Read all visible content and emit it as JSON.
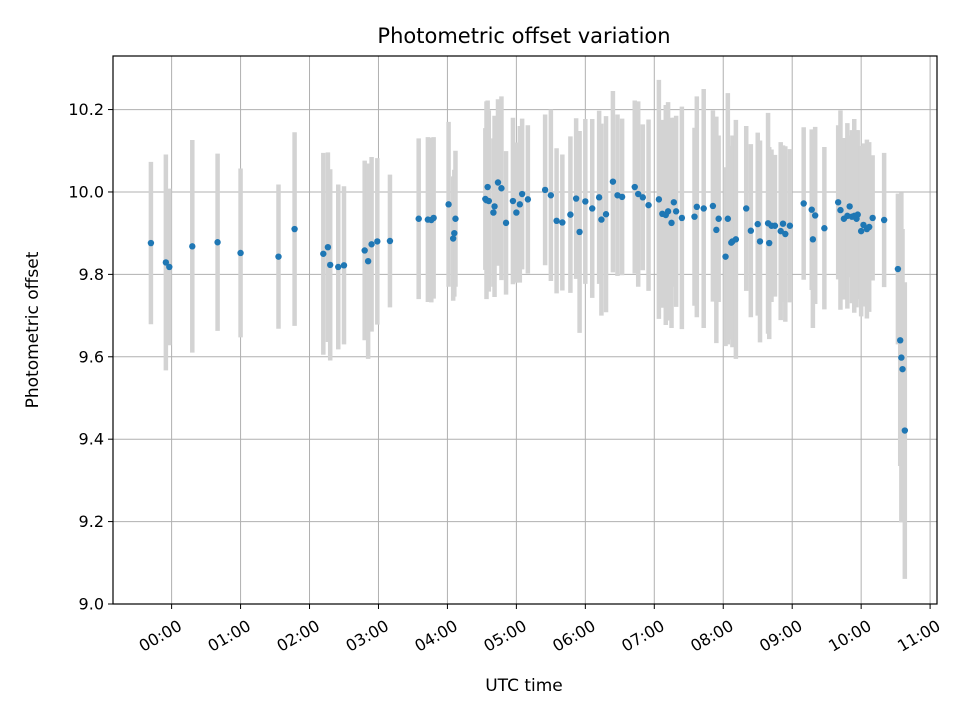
{
  "chart_data": {
    "type": "scatter",
    "title": "Photometric offset variation",
    "xlabel": "UTC time",
    "ylabel": "Photometric offset",
    "ylim": [
      9.0,
      10.33
    ],
    "xlim_hours": [
      -0.85,
      11.1
    ],
    "grid": true,
    "x_ticks": [
      "00:00",
      "01:00",
      "02:00",
      "03:00",
      "04:00",
      "05:00",
      "06:00",
      "07:00",
      "08:00",
      "09:00",
      "10:00",
      "11:00"
    ],
    "y_ticks": [
      "9.0",
      "9.2",
      "9.4",
      "9.6",
      "9.8",
      "10.0",
      "10.2"
    ],
    "colors": {
      "points": "#1f77b4",
      "errorbars": "#d3d3d3",
      "grid": "#b0b0b0"
    },
    "series": [
      {
        "x": [
          "-00:18",
          "-00:05",
          "-00:02",
          "00:18",
          "00:40",
          "01:00",
          "01:33",
          "01:47",
          "02:12",
          "02:16",
          "02:18",
          "02:25",
          "02:30",
          "02:48",
          "02:51",
          "02:54",
          "02:59",
          "03:10",
          "03:35",
          "03:43",
          "03:46",
          "03:48",
          "04:01",
          "04:05",
          "04:06",
          "04:07",
          "04:33",
          "04:34",
          "04:35",
          "04:36",
          "04:40",
          "04:41",
          "04:44",
          "04:47",
          "04:51",
          "04:57",
          "05:00",
          "05:03",
          "05:05",
          "05:10",
          "05:25",
          "05:30",
          "05:35",
          "05:40",
          "05:47",
          "05:52",
          "05:55",
          "06:00",
          "06:06",
          "06:12",
          "06:14",
          "06:18",
          "06:24",
          "06:28",
          "06:32",
          "06:43",
          "06:46",
          "06:50",
          "06:55",
          "07:04",
          "07:07",
          "07:10",
          "07:12",
          "07:15",
          "07:17",
          "07:19",
          "07:24",
          "07:35",
          "07:37",
          "07:43",
          "07:51",
          "07:54",
          "07:56",
          "08:02",
          "08:04",
          "08:07",
          "08:08",
          "08:11",
          "08:20",
          "08:24",
          "08:30",
          "08:32",
          "08:39",
          "08:40",
          "08:42",
          "08:45",
          "08:50",
          "08:52",
          "08:54",
          "08:58",
          "09:10",
          "09:17",
          "09:18",
          "09:20",
          "09:28",
          "09:40",
          "09:42",
          "09:45",
          "09:48",
          "09:50",
          "09:52",
          "09:54",
          "09:56",
          "09:57",
          "10:00",
          "10:02",
          "10:05",
          "10:07",
          "10:10",
          "10:20",
          "10:32",
          "10:34",
          "10:35",
          "10:36",
          "10:38"
        ],
        "y": [
          9.876,
          9.829,
          9.818,
          9.868,
          9.878,
          9.852,
          9.843,
          9.91,
          9.85,
          9.866,
          9.823,
          9.818,
          9.822,
          9.858,
          9.832,
          9.873,
          9.88,
          9.881,
          9.935,
          9.933,
          9.932,
          9.937,
          9.97,
          9.887,
          9.9,
          9.935,
          9.983,
          9.98,
          10.012,
          9.978,
          9.95,
          9.965,
          10.023,
          10.009,
          9.925,
          9.978,
          9.95,
          9.97,
          9.995,
          9.982,
          10.005,
          9.992,
          9.93,
          9.926,
          9.945,
          9.984,
          9.903,
          9.977,
          9.96,
          9.987,
          9.933,
          9.946,
          10.025,
          9.992,
          9.988,
          10.012,
          9.995,
          9.987,
          9.968,
          9.982,
          9.947,
          9.944,
          9.953,
          9.925,
          9.975,
          9.953,
          9.937,
          9.94,
          9.964,
          9.96,
          9.966,
          9.908,
          9.935,
          9.843,
          9.935,
          9.877,
          9.88,
          9.885,
          9.96,
          9.906,
          9.922,
          9.88,
          9.924,
          9.876,
          9.918,
          9.918,
          9.905,
          9.923,
          9.898,
          9.918,
          9.972,
          9.957,
          9.885,
          9.943,
          9.912,
          9.975,
          9.956,
          9.935,
          9.942,
          9.965,
          9.94,
          9.942,
          9.935,
          9.945,
          9.905,
          9.92,
          9.91,
          9.915,
          9.937,
          9.932,
          9.813,
          9.64,
          9.598,
          9.57,
          9.421
        ],
        "err": [
          0.197,
          0.262,
          0.19,
          0.258,
          0.215,
          0.205,
          0.175,
          0.235,
          0.245,
          0.23,
          0.232,
          0.2,
          0.192,
          0.218,
          0.237,
          0.212,
          0.202,
          0.161,
          0.195,
          0.2,
          0.2,
          0.196,
          0.2,
          0.151,
          0.154,
          0.165,
          0.172,
          0.24,
          0.21,
          0.22,
          0.18,
          0.22,
          0.202,
          0.223,
          0.174,
          0.202,
          0.17,
          0.19,
          0.183,
          0.18,
          0.183,
          0.208,
          0.176,
          0.165,
          0.19,
          0.195,
          0.245,
          0.2,
          0.217,
          0.21,
          0.233,
          0.238,
          0.22,
          0.196,
          0.19,
          0.21,
          0.225,
          0.177,
          0.208,
          0.29,
          0.228,
          0.267,
          0.265,
          0.255,
          0.205,
          0.232,
          0.27,
          0.216,
          0.268,
          0.29,
          0.232,
          0.275,
          0.202,
          0.217,
          0.305,
          0.235,
          0.257,
          0.29,
          0.2,
          0.21,
          0.222,
          0.245,
          0.268,
          0.233,
          0.185,
          0.172,
          0.216,
          0.19,
          0.213,
          0.186,
          0.185,
          0.195,
          0.215,
          0.215,
          0.197,
          0.187,
          0.242,
          0.196,
          0.225,
          0.172,
          0.21,
          0.235,
          0.215,
          0.205,
          0.207,
          0.198,
          0.217,
          0.206,
          0.152,
          0.163,
          0.183,
          0.305,
          0.4,
          0.34,
          0.36
        ]
      }
    ]
  }
}
